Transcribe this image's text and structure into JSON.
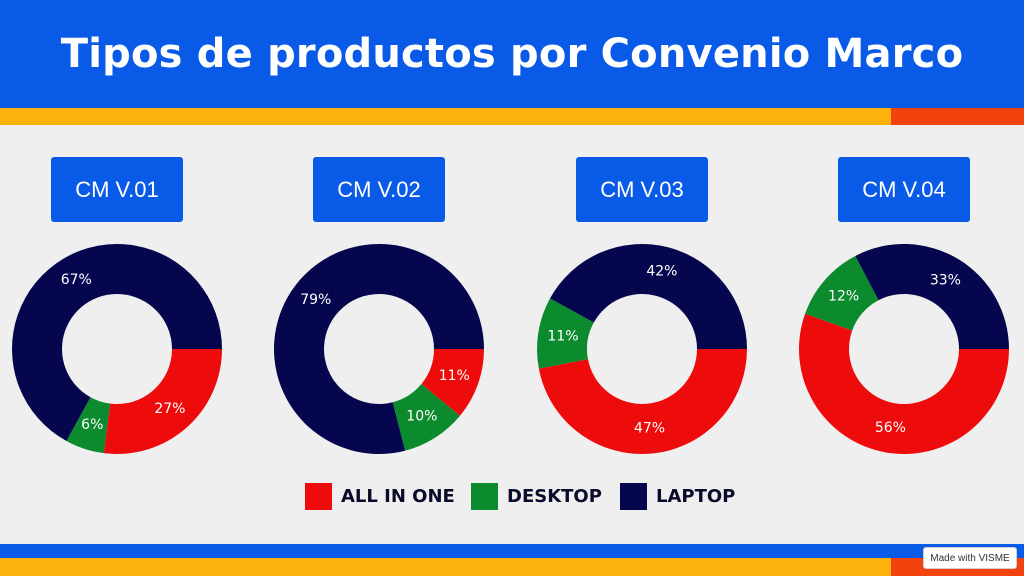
{
  "header": {
    "title": "Tipos de productos por Convenio Marco"
  },
  "colors": {
    "header_bg": "#0a5ae8",
    "stripe_yellow": "#fbb20d",
    "stripe_orange": "#f2430e",
    "all_in_one": "#ee0b0b",
    "desktop": "#0c8a2e",
    "laptop": "#06064f"
  },
  "chart_data": [
    {
      "type": "pie",
      "title": "CM V.01",
      "slices": [
        {
          "label": "ALL IN ONE",
          "value": 27,
          "display": "27%"
        },
        {
          "label": "DESKTOP",
          "value": 6,
          "display": "6%"
        },
        {
          "label": "LAPTOP",
          "value": 67,
          "display": "67%"
        }
      ]
    },
    {
      "type": "pie",
      "title": "CM V.02",
      "slices": [
        {
          "label": "ALL IN ONE",
          "value": 11,
          "display": "11%"
        },
        {
          "label": "DESKTOP",
          "value": 10,
          "display": "10%"
        },
        {
          "label": "LAPTOP",
          "value": 79,
          "display": "79%"
        }
      ]
    },
    {
      "type": "pie",
      "title": "CM V.03",
      "slices": [
        {
          "label": "ALL IN ONE",
          "value": 47,
          "display": "47%"
        },
        {
          "label": "DESKTOP",
          "value": 11,
          "display": "11%"
        },
        {
          "label": "LAPTOP",
          "value": 42,
          "display": "42%"
        }
      ]
    },
    {
      "type": "pie",
      "title": "CM V.04",
      "slices": [
        {
          "label": "ALL IN ONE",
          "value": 56,
          "display": "56%"
        },
        {
          "label": "DESKTOP",
          "value": 12,
          "display": "12%"
        },
        {
          "label": "LAPTOP",
          "value": 33,
          "display": "33%"
        }
      ]
    }
  ],
  "legend": {
    "placement": "bottom-center",
    "items": [
      {
        "label": "ALL IN ONE",
        "color": "#ee0b0b"
      },
      {
        "label": "DESKTOP",
        "color": "#0c8a2e"
      },
      {
        "label": "LAPTOP",
        "color": "#06064f"
      }
    ]
  },
  "footer": {
    "badge": "Made with VISME"
  }
}
